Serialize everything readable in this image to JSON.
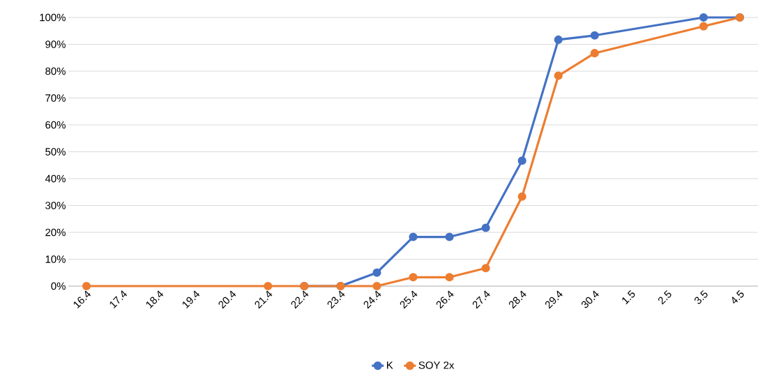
{
  "chart_data": {
    "type": "line",
    "categories": [
      "16.4",
      "17.4",
      "18.4",
      "19.4",
      "20.4",
      "21.4",
      "22.4",
      "23.4",
      "24.4",
      "25.4",
      "26.4",
      "27.4",
      "28.4",
      "29.4",
      "30.4",
      "1.5",
      "2.5",
      "3.5",
      "4.5"
    ],
    "series": [
      {
        "name": "K",
        "color": "#4472c4",
        "values": [
          null,
          null,
          null,
          null,
          null,
          null,
          0,
          0,
          5,
          18.3,
          18.3,
          21.7,
          46.7,
          91.7,
          93.3,
          null,
          null,
          100,
          100
        ]
      },
      {
        "name": "SOY 2x",
        "color": "#ed7d31",
        "values": [
          0,
          null,
          null,
          null,
          null,
          0,
          0,
          0,
          0,
          3.3,
          3.3,
          6.7,
          33.3,
          78.3,
          86.7,
          null,
          null,
          96.7,
          100
        ]
      }
    ],
    "ylim": [
      0,
      100
    ],
    "yticks": [
      {
        "value": 0,
        "label": "0%"
      },
      {
        "value": 10,
        "label": "10%"
      },
      {
        "value": 20,
        "label": "20%"
      },
      {
        "value": 30,
        "label": "30%"
      },
      {
        "value": 40,
        "label": "40%"
      },
      {
        "value": 50,
        "label": "50%"
      },
      {
        "value": 60,
        "label": "60%"
      },
      {
        "value": 70,
        "label": "70%"
      },
      {
        "value": 80,
        "label": "80%"
      },
      {
        "value": 90,
        "label": "90%"
      },
      {
        "value": 100,
        "label": "100%"
      }
    ],
    "grid": "y",
    "legend": "bottom",
    "marker": "circle",
    "line_style": "solid"
  }
}
